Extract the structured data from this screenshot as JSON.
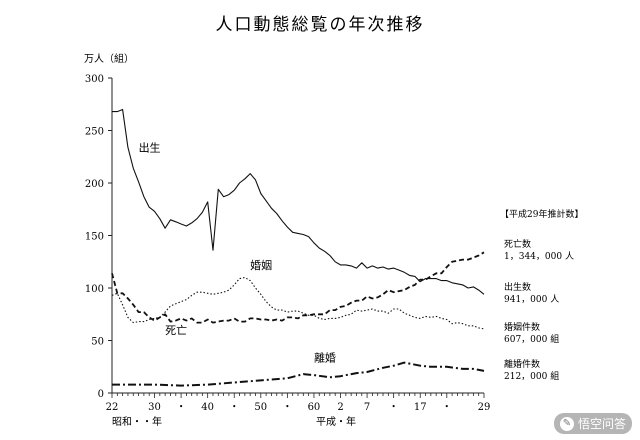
{
  "chart_data": {
    "type": "line",
    "title": "人口動態総覧の年次推移",
    "ylabel": "万人（組）",
    "ylim": [
      0,
      300
    ],
    "yticks": [
      "0",
      "50",
      "100",
      "150",
      "200",
      "250",
      "300"
    ],
    "xlim": [
      1947,
      2017
    ],
    "era_labels": {
      "showa": "昭和・・年",
      "heisei": "平成・年"
    },
    "x_tick_labels": [
      {
        "x": 1947,
        "label": "22"
      },
      {
        "x": 1955,
        "label": "30"
      },
      {
        "x": 1960,
        "label": "・"
      },
      {
        "x": 1965,
        "label": "40"
      },
      {
        "x": 1970,
        "label": "・"
      },
      {
        "x": 1975,
        "label": "50"
      },
      {
        "x": 1980,
        "label": "・"
      },
      {
        "x": 1985,
        "label": "60"
      },
      {
        "x": 1990,
        "label": "2"
      },
      {
        "x": 1995,
        "label": "7"
      },
      {
        "x": 2000,
        "label": "・"
      },
      {
        "x": 2005,
        "label": "17"
      },
      {
        "x": 2010,
        "label": "・"
      },
      {
        "x": 2017,
        "label": "29"
      }
    ],
    "legend_title": "【平成29年推計数】",
    "legend": [
      {
        "name": "死亡数",
        "value": "1，344，000 人"
      },
      {
        "name": "出生数",
        "value": "941，000 人"
      },
      {
        "name": "婚姻件数",
        "value": "607，000 組"
      },
      {
        "name": "離婚件数",
        "value": "212，000 組"
      }
    ],
    "series": [
      {
        "name": "出生",
        "style": "solid",
        "points": [
          [
            1947,
            268
          ],
          [
            1948,
            268
          ],
          [
            1949,
            270
          ],
          [
            1950,
            234
          ],
          [
            1951,
            214
          ],
          [
            1952,
            201
          ],
          [
            1953,
            187
          ],
          [
            1954,
            177
          ],
          [
            1955,
            173
          ],
          [
            1956,
            166
          ],
          [
            1957,
            157
          ],
          [
            1958,
            165
          ],
          [
            1959,
            163
          ],
          [
            1960,
            161
          ],
          [
            1961,
            159
          ],
          [
            1962,
            162
          ],
          [
            1963,
            166
          ],
          [
            1964,
            172
          ],
          [
            1965,
            182
          ],
          [
            1966,
            136
          ],
          [
            1967,
            194
          ],
          [
            1968,
            187
          ],
          [
            1969,
            189
          ],
          [
            1970,
            193
          ],
          [
            1971,
            200
          ],
          [
            1972,
            204
          ],
          [
            1973,
            209
          ],
          [
            1974,
            203
          ],
          [
            1975,
            190
          ],
          [
            1976,
            183
          ],
          [
            1977,
            176
          ],
          [
            1978,
            171
          ],
          [
            1979,
            164
          ],
          [
            1980,
            158
          ],
          [
            1981,
            153
          ],
          [
            1982,
            152
          ],
          [
            1983,
            151
          ],
          [
            1984,
            149
          ],
          [
            1985,
            143
          ],
          [
            1986,
            138
          ],
          [
            1987,
            135
          ],
          [
            1988,
            131
          ],
          [
            1989,
            125
          ],
          [
            1990,
            122
          ],
          [
            1991,
            122
          ],
          [
            1992,
            121
          ],
          [
            1993,
            119
          ],
          [
            1994,
            124
          ],
          [
            1995,
            119
          ],
          [
            1996,
            121
          ],
          [
            1997,
            119
          ],
          [
            1998,
            120
          ],
          [
            1999,
            118
          ],
          [
            2000,
            119
          ],
          [
            2001,
            117
          ],
          [
            2002,
            115
          ],
          [
            2003,
            112
          ],
          [
            2004,
            111
          ],
          [
            2005,
            106
          ],
          [
            2006,
            109
          ],
          [
            2007,
            109
          ],
          [
            2008,
            109
          ],
          [
            2009,
            107
          ],
          [
            2010,
            107
          ],
          [
            2011,
            105
          ],
          [
            2012,
            104
          ],
          [
            2013,
            103
          ],
          [
            2014,
            100
          ],
          [
            2015,
            101
          ],
          [
            2016,
            98
          ],
          [
            2017,
            94
          ]
        ]
      },
      {
        "name": "死亡",
        "style": "dashed",
        "points": [
          [
            1947,
            114
          ],
          [
            1948,
            95
          ],
          [
            1949,
            95
          ],
          [
            1950,
            90
          ],
          [
            1951,
            84
          ],
          [
            1952,
            77
          ],
          [
            1953,
            77
          ],
          [
            1954,
            72
          ],
          [
            1955,
            69
          ],
          [
            1956,
            72
          ],
          [
            1957,
            75
          ],
          [
            1958,
            68
          ],
          [
            1959,
            69
          ],
          [
            1960,
            71
          ],
          [
            1961,
            69
          ],
          [
            1962,
            71
          ],
          [
            1963,
            67
          ],
          [
            1964,
            67
          ],
          [
            1965,
            70
          ],
          [
            1966,
            67
          ],
          [
            1967,
            68
          ],
          [
            1968,
            69
          ],
          [
            1969,
            69
          ],
          [
            1970,
            71
          ],
          [
            1971,
            68
          ],
          [
            1972,
            68
          ],
          [
            1973,
            71
          ],
          [
            1974,
            71
          ],
          [
            1975,
            70
          ],
          [
            1976,
            70
          ],
          [
            1977,
            69
          ],
          [
            1978,
            70
          ],
          [
            1979,
            69
          ],
          [
            1980,
            72
          ],
          [
            1981,
            72
          ],
          [
            1982,
            71
          ],
          [
            1983,
            74
          ],
          [
            1984,
            74
          ],
          [
            1985,
            75
          ],
          [
            1986,
            75
          ],
          [
            1987,
            75
          ],
          [
            1988,
            79
          ],
          [
            1989,
            79
          ],
          [
            1990,
            82
          ],
          [
            1991,
            83
          ],
          [
            1992,
            86
          ],
          [
            1993,
            88
          ],
          [
            1994,
            88
          ],
          [
            1995,
            92
          ],
          [
            1996,
            90
          ],
          [
            1997,
            91
          ],
          [
            1998,
            94
          ],
          [
            1999,
            98
          ],
          [
            2000,
            96
          ],
          [
            2001,
            97
          ],
          [
            2002,
            98
          ],
          [
            2003,
            101
          ],
          [
            2004,
            103
          ],
          [
            2005,
            108
          ],
          [
            2006,
            108
          ],
          [
            2007,
            111
          ],
          [
            2008,
            114
          ],
          [
            2009,
            114
          ],
          [
            2010,
            120
          ],
          [
            2011,
            125
          ],
          [
            2012,
            126
          ],
          [
            2013,
            127
          ],
          [
            2014,
            127
          ],
          [
            2015,
            129
          ],
          [
            2016,
            131
          ],
          [
            2017,
            134
          ]
        ]
      },
      {
        "name": "婚姻",
        "style": "dotted",
        "points": [
          [
            1947,
            93
          ],
          [
            1948,
            95
          ],
          [
            1949,
            84
          ],
          [
            1950,
            72
          ],
          [
            1951,
            67
          ],
          [
            1952,
            68
          ],
          [
            1953,
            68
          ],
          [
            1954,
            70
          ],
          [
            1955,
            71
          ],
          [
            1956,
            72
          ],
          [
            1957,
            77
          ],
          [
            1958,
            83
          ],
          [
            1959,
            85
          ],
          [
            1960,
            87
          ],
          [
            1961,
            89
          ],
          [
            1962,
            93
          ],
          [
            1963,
            96
          ],
          [
            1964,
            96
          ],
          [
            1965,
            95
          ],
          [
            1966,
            94
          ],
          [
            1967,
            95
          ],
          [
            1968,
            96
          ],
          [
            1969,
            98
          ],
          [
            1970,
            103
          ],
          [
            1971,
            109
          ],
          [
            1972,
            110
          ],
          [
            1973,
            107
          ],
          [
            1974,
            100
          ],
          [
            1975,
            94
          ],
          [
            1976,
            87
          ],
          [
            1977,
            82
          ],
          [
            1978,
            79
          ],
          [
            1979,
            79
          ],
          [
            1980,
            77
          ],
          [
            1981,
            78
          ],
          [
            1982,
            78
          ],
          [
            1983,
            76
          ],
          [
            1984,
            74
          ],
          [
            1985,
            74
          ],
          [
            1986,
            71
          ],
          [
            1987,
            70
          ],
          [
            1988,
            71
          ],
          [
            1989,
            71
          ],
          [
            1990,
            72
          ],
          [
            1991,
            74
          ],
          [
            1992,
            75
          ],
          [
            1993,
            79
          ],
          [
            1994,
            78
          ],
          [
            1995,
            79
          ],
          [
            1996,
            80
          ],
          [
            1997,
            78
          ],
          [
            1998,
            78
          ],
          [
            1999,
            76
          ],
          [
            2000,
            80
          ],
          [
            2001,
            80
          ],
          [
            2002,
            76
          ],
          [
            2003,
            74
          ],
          [
            2004,
            72
          ],
          [
            2005,
            71
          ],
          [
            2006,
            73
          ],
          [
            2007,
            72
          ],
          [
            2008,
            73
          ],
          [
            2009,
            71
          ],
          [
            2010,
            70
          ],
          [
            2011,
            66
          ],
          [
            2012,
            67
          ],
          [
            2013,
            66
          ],
          [
            2014,
            64
          ],
          [
            2015,
            64
          ],
          [
            2016,
            62
          ],
          [
            2017,
            61
          ]
        ]
      },
      {
        "name": "離婚",
        "style": "dashdot",
        "points": [
          [
            1947,
            8
          ],
          [
            1950,
            8
          ],
          [
            1955,
            8
          ],
          [
            1960,
            7
          ],
          [
            1965,
            8
          ],
          [
            1970,
            10
          ],
          [
            1975,
            12
          ],
          [
            1980,
            14
          ],
          [
            1983,
            18
          ],
          [
            1985,
            17
          ],
          [
            1988,
            15
          ],
          [
            1990,
            16
          ],
          [
            1993,
            19
          ],
          [
            1995,
            20
          ],
          [
            1998,
            24
          ],
          [
            2000,
            26
          ],
          [
            2002,
            29
          ],
          [
            2003,
            28
          ],
          [
            2005,
            26
          ],
          [
            2007,
            25
          ],
          [
            2010,
            25
          ],
          [
            2013,
            23
          ],
          [
            2015,
            23
          ],
          [
            2017,
            21
          ]
        ]
      }
    ],
    "series_labels": [
      {
        "text": "出生",
        "x": 1952,
        "y": 230
      },
      {
        "text": "婚姻",
        "x": 1973,
        "y": 118
      },
      {
        "text": "死亡",
        "x": 1957,
        "y": 56
      },
      {
        "text": "離婚",
        "x": 1985,
        "y": 30
      }
    ]
  },
  "watermark": {
    "text": "悟空问答"
  }
}
